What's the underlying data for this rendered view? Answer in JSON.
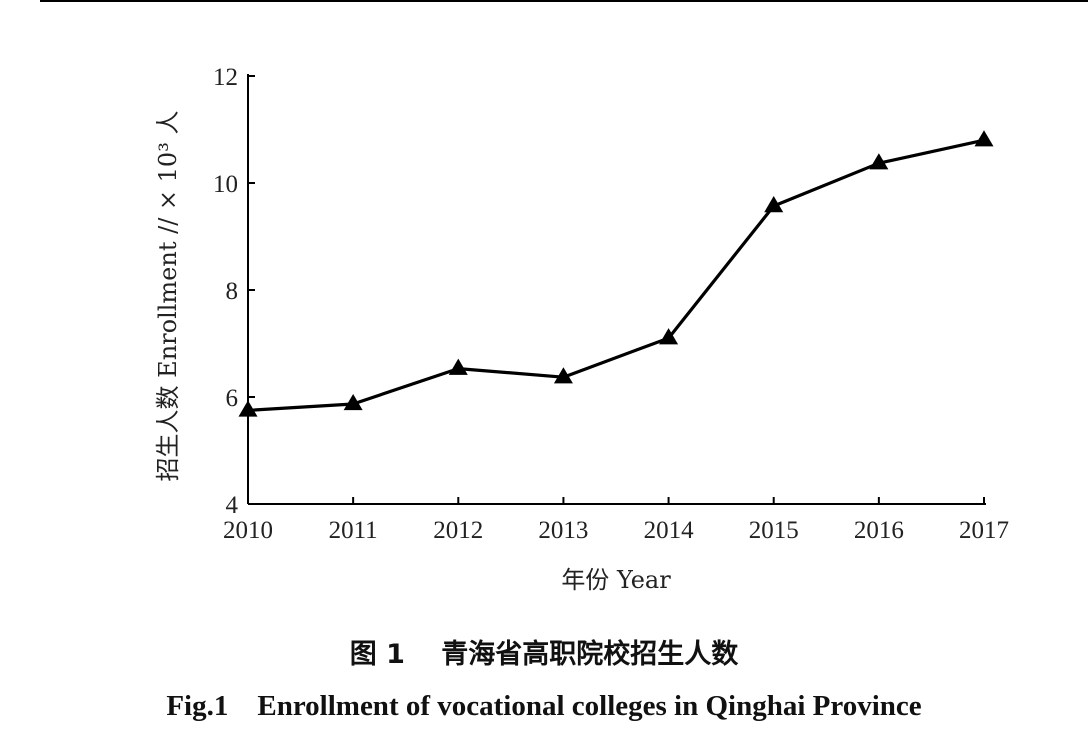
{
  "chart_data": {
    "type": "line",
    "x": [
      "2010",
      "2011",
      "2012",
      "2013",
      "2014",
      "2015",
      "2016",
      "2017"
    ],
    "series": [
      {
        "values": [
          5.75,
          5.87,
          6.53,
          6.37,
          7.1,
          9.57,
          10.37,
          10.8
        ]
      }
    ],
    "xlabel": "年份 Year",
    "ylabel": "招生人数 Enrollment // × 10³ 人",
    "ylim": [
      4,
      12
    ],
    "yticks": [
      "4",
      "6",
      "8",
      "10",
      "12"
    ],
    "marker": "triangle",
    "line_color": "#000000",
    "grid": false
  },
  "caption": {
    "zh": "图 1　 青海省高职院校招生人数",
    "en": "Fig.1    Enrollment of vocational colleges in Qinghai Province"
  }
}
